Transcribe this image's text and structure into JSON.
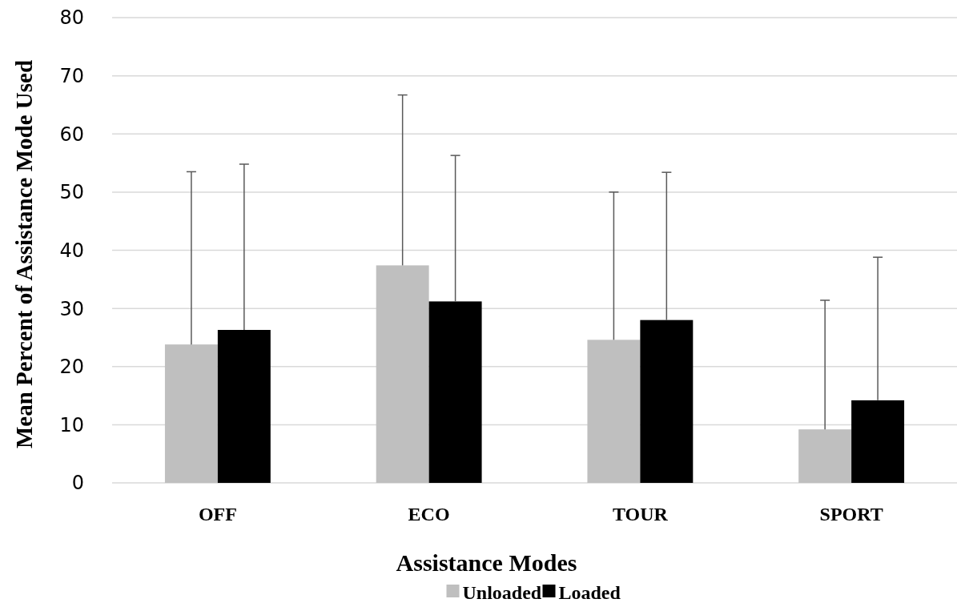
{
  "chart_data": {
    "type": "bar",
    "xlabel": "Assistance Modes",
    "ylabel": "Mean Percent of Assistance Mode Used",
    "categories": [
      "OFF",
      "ECO",
      "TOUR",
      "SPORT"
    ],
    "series": [
      {
        "name": "Unloaded",
        "color": "#bfbfbf",
        "values": [
          23.8,
          37.4,
          24.6,
          9.2
        ],
        "errors": [
          [
            23.8,
            53.5
          ],
          [
            37.4,
            66.7
          ],
          [
            24.6,
            50.0
          ],
          [
            9.2,
            31.4
          ]
        ]
      },
      {
        "name": "Loaded",
        "color": "#000000",
        "values": [
          26.3,
          31.2,
          28.0,
          14.2
        ],
        "errors": [
          [
            26.3,
            54.8
          ],
          [
            31.2,
            56.3
          ],
          [
            28.0,
            53.4
          ],
          [
            14.2,
            38.8
          ]
        ]
      }
    ],
    "ylim": [
      0,
      80
    ],
    "yticks": [
      0,
      10,
      20,
      30,
      40,
      50,
      60,
      70,
      80
    ],
    "grid": "y",
    "legend": "bottom"
  }
}
